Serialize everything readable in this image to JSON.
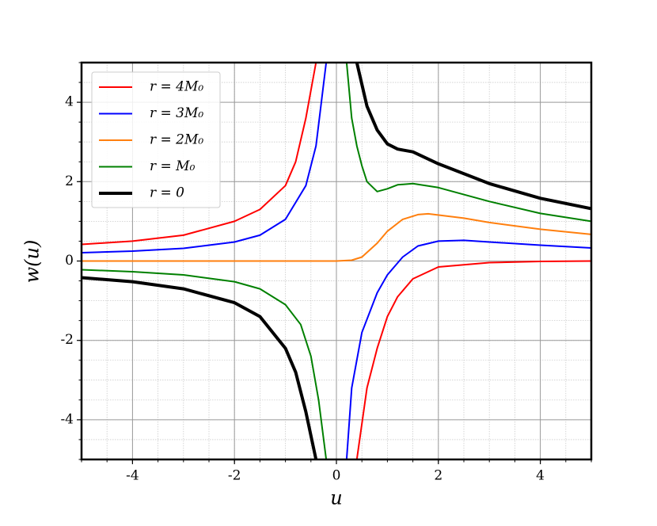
{
  "chart_data": {
    "type": "line",
    "xlabel": "u",
    "ylabel": "w(u)",
    "xlim": [
      -5,
      5
    ],
    "ylim": [
      -5,
      5
    ],
    "xticks": [
      -4,
      -2,
      0,
      2,
      4
    ],
    "yticks": [
      -4,
      -2,
      0,
      2,
      4
    ],
    "grid": true,
    "legend": "upper left",
    "series": [
      {
        "name": "r = 4M₀",
        "color": "#ff0000",
        "x": [
          -5,
          -4,
          -3,
          -2,
          -1.5,
          -1,
          -0.8,
          -0.6,
          -0.4,
          0,
          0.4,
          0.6,
          0.8,
          1.0,
          1.2,
          1.5,
          2,
          3,
          4,
          5
        ],
        "values": [
          0.42,
          0.5,
          0.65,
          1.0,
          1.3,
          1.9,
          2.5,
          3.6,
          5,
          null,
          -5,
          -3.2,
          -2.2,
          -1.4,
          -0.9,
          -0.45,
          -0.15,
          -0.04,
          -0.01,
          0
        ]
      },
      {
        "name": "r = 3M₀",
        "color": "#0000ff",
        "x": [
          -5,
          -4,
          -3,
          -2,
          -1.5,
          -1,
          -0.6,
          -0.4,
          -0.2,
          0,
          0.2,
          0.3,
          0.5,
          0.8,
          1.0,
          1.3,
          1.6,
          2.0,
          2.5,
          3,
          4,
          5
        ],
        "values": [
          0.21,
          0.25,
          0.32,
          0.48,
          0.65,
          1.05,
          1.9,
          2.9,
          5,
          null,
          -5,
          -3.2,
          -1.8,
          -0.8,
          -0.35,
          0.1,
          0.38,
          0.5,
          0.52,
          0.48,
          0.4,
          0.33
        ]
      },
      {
        "name": "r = 2M₀",
        "color": "#ff7f0e",
        "x": [
          -5,
          -4,
          -3,
          -2,
          -1,
          0,
          0.3,
          0.5,
          0.8,
          1.0,
          1.3,
          1.6,
          1.8,
          2.5,
          3,
          4,
          5
        ],
        "values": [
          0,
          0,
          0,
          0,
          0,
          0,
          0.02,
          0.1,
          0.45,
          0.75,
          1.05,
          1.17,
          1.19,
          1.08,
          0.97,
          0.8,
          0.67
        ]
      },
      {
        "name": "r = M₀",
        "color": "#008000",
        "x": [
          -5,
          -4,
          -3,
          -2,
          -1.5,
          -1,
          -0.7,
          -0.5,
          -0.35,
          -0.2,
          0,
          0.2,
          0.3,
          0.4,
          0.5,
          0.6,
          0.8,
          1.0,
          1.2,
          1.5,
          2.0,
          3,
          4,
          5
        ],
        "values": [
          -0.22,
          -0.27,
          -0.35,
          -0.52,
          -0.7,
          -1.1,
          -1.6,
          -2.4,
          -3.5,
          -5,
          null,
          5,
          3.6,
          2.9,
          2.4,
          2.0,
          1.75,
          1.82,
          1.92,
          1.95,
          1.85,
          1.5,
          1.2,
          1.0
        ]
      },
      {
        "name": "r = 0",
        "color": "#000000",
        "x": [
          -5,
          -4,
          -3,
          -2,
          -1.5,
          -1,
          -0.8,
          -0.6,
          -0.4,
          0,
          0.4,
          0.6,
          0.8,
          1.0,
          1.2,
          1.5,
          2,
          3,
          4,
          5
        ],
        "values": [
          -0.42,
          -0.52,
          -0.7,
          -1.05,
          -1.4,
          -2.2,
          -2.8,
          -3.8,
          -5,
          null,
          5,
          3.9,
          3.3,
          2.95,
          2.82,
          2.75,
          2.45,
          1.95,
          1.58,
          1.32
        ]
      }
    ]
  }
}
